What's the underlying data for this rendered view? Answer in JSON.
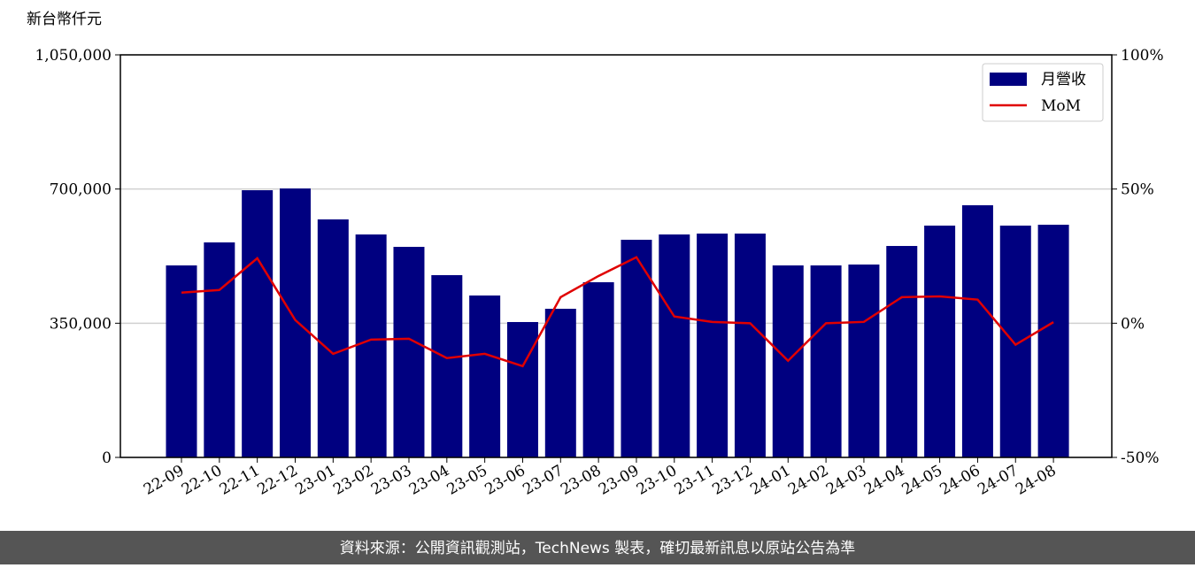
{
  "chart_data": {
    "type": "bar",
    "ylabel": "新台幣仟元",
    "categories": [
      "22-09",
      "22-10",
      "22-11",
      "22-12",
      "23-01",
      "23-02",
      "23-03",
      "23-04",
      "23-05",
      "23-06",
      "23-07",
      "23-08",
      "23-09",
      "23-10",
      "23-11",
      "23-12",
      "24-01",
      "24-02",
      "24-03",
      "24-04",
      "24-05",
      "24-06",
      "24-07",
      "24-08"
    ],
    "series": [
      {
        "name": "月營收",
        "type": "bar",
        "color": "#000080",
        "values": [
          500800,
          560800,
          696900,
          701500,
          620800,
          581500,
          549200,
          475400,
          422300,
          353100,
          387700,
          456900,
          567700,
          581500,
          583800,
          583800,
          500800,
          500800,
          503100,
          551500,
          604600,
          657700,
          604600,
          606900
        ]
      },
      {
        "name": "MoM",
        "type": "line",
        "axis": "y2",
        "color": "#e00000",
        "values": [
          11.4,
          12.4,
          24.2,
          1.2,
          -11.4,
          -6.1,
          -5.8,
          -13.0,
          -11.4,
          -16.0,
          9.7,
          17.6,
          24.6,
          2.5,
          0.5,
          0,
          -14.0,
          0,
          0.5,
          9.7,
          10.0,
          8.8,
          -8.0,
          0.4
        ]
      }
    ],
    "ylim": [
      0,
      1050000
    ],
    "yticks": [
      0,
      {
        "value": 350000,
        "label": "350,000"
      },
      {
        "value": 700000,
        "label": "700,000"
      },
      {
        "value": 1050000,
        "label": "1,050,000"
      }
    ],
    "y2lim": [
      -50,
      100
    ],
    "y2ticks": [
      {
        "value": -50,
        "label": "-50%"
      },
      {
        "value": 0,
        "label": "0%"
      },
      {
        "value": 50,
        "label": "50%"
      },
      {
        "value": 100,
        "label": "100%"
      }
    ],
    "grid": true,
    "legend": "upper right"
  },
  "footer": "資料來源：公開資訊觀測站，TechNews 製表，確切最新訊息以原站公告為準"
}
